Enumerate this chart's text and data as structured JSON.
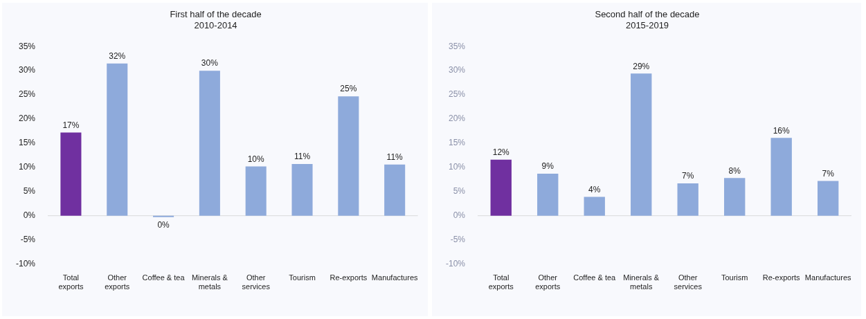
{
  "chart_data": [
    {
      "type": "bar",
      "title": "First half of the decade",
      "subtitle": "2010-2014",
      "categories": [
        "Total exports",
        "Other exports",
        "Coffee & tea",
        "Minerals & metals",
        "Other services",
        "Tourism",
        "Re-exports",
        "Manufactures"
      ],
      "values": [
        17.2,
        31.5,
        -0.3,
        30.0,
        10.2,
        10.7,
        24.7,
        10.6
      ],
      "colors": [
        "#7030a0",
        "#8eaadb",
        "#8eaadb",
        "#8eaadb",
        "#8eaadb",
        "#8eaadb",
        "#8eaadb",
        "#8eaadb"
      ],
      "value_labels": [
        "17%",
        "32%",
        "0%",
        "30%",
        "10%",
        "11%",
        "25%",
        "11%"
      ],
      "ylim": [
        -10,
        35
      ],
      "yticks": [
        {
          "value": -10,
          "label": "-10%"
        },
        {
          "value": -5,
          "label": "-5%"
        },
        {
          "value": 0,
          "label": "0%"
        },
        {
          "value": 5,
          "label": "5%"
        },
        {
          "value": 10,
          "label": "10%"
        },
        {
          "value": 15,
          "label": "15%"
        },
        {
          "value": 20,
          "label": "20%"
        },
        {
          "value": 25,
          "label": "25%"
        },
        {
          "value": 30,
          "label": "30%"
        },
        {
          "value": 35,
          "label": "35%"
        }
      ]
    },
    {
      "type": "bar",
      "title": "Second half of the decade",
      "subtitle": "2015-2019",
      "categories": [
        "Total exports",
        "Other exports",
        "Coffee & tea",
        "Minerals & metals",
        "Other services",
        "Tourism",
        "Re-exports",
        "Manufactures"
      ],
      "values": [
        11.6,
        8.7,
        3.9,
        29.4,
        6.7,
        7.8,
        16.1,
        7.2
      ],
      "colors": [
        "#7030a0",
        "#8eaadb",
        "#8eaadb",
        "#8eaadb",
        "#8eaadb",
        "#8eaadb",
        "#8eaadb",
        "#8eaadb"
      ],
      "value_labels": [
        "12%",
        "9%",
        "4%",
        "29%",
        "7%",
        "8%",
        "16%",
        "7%"
      ],
      "ylim": [
        -10,
        35
      ],
      "yticks": [
        {
          "value": -10,
          "label": "-10%"
        },
        {
          "value": -5,
          "label": "-5%"
        },
        {
          "value": 0,
          "label": "0%"
        },
        {
          "value": 5,
          "label": "5%"
        },
        {
          "value": 10,
          "label": "10%"
        },
        {
          "value": 15,
          "label": "15%"
        },
        {
          "value": 20,
          "label": "20%"
        },
        {
          "value": 25,
          "label": "25%"
        },
        {
          "value": 30,
          "label": "30%"
        },
        {
          "value": 35,
          "label": "35%"
        }
      ]
    }
  ]
}
